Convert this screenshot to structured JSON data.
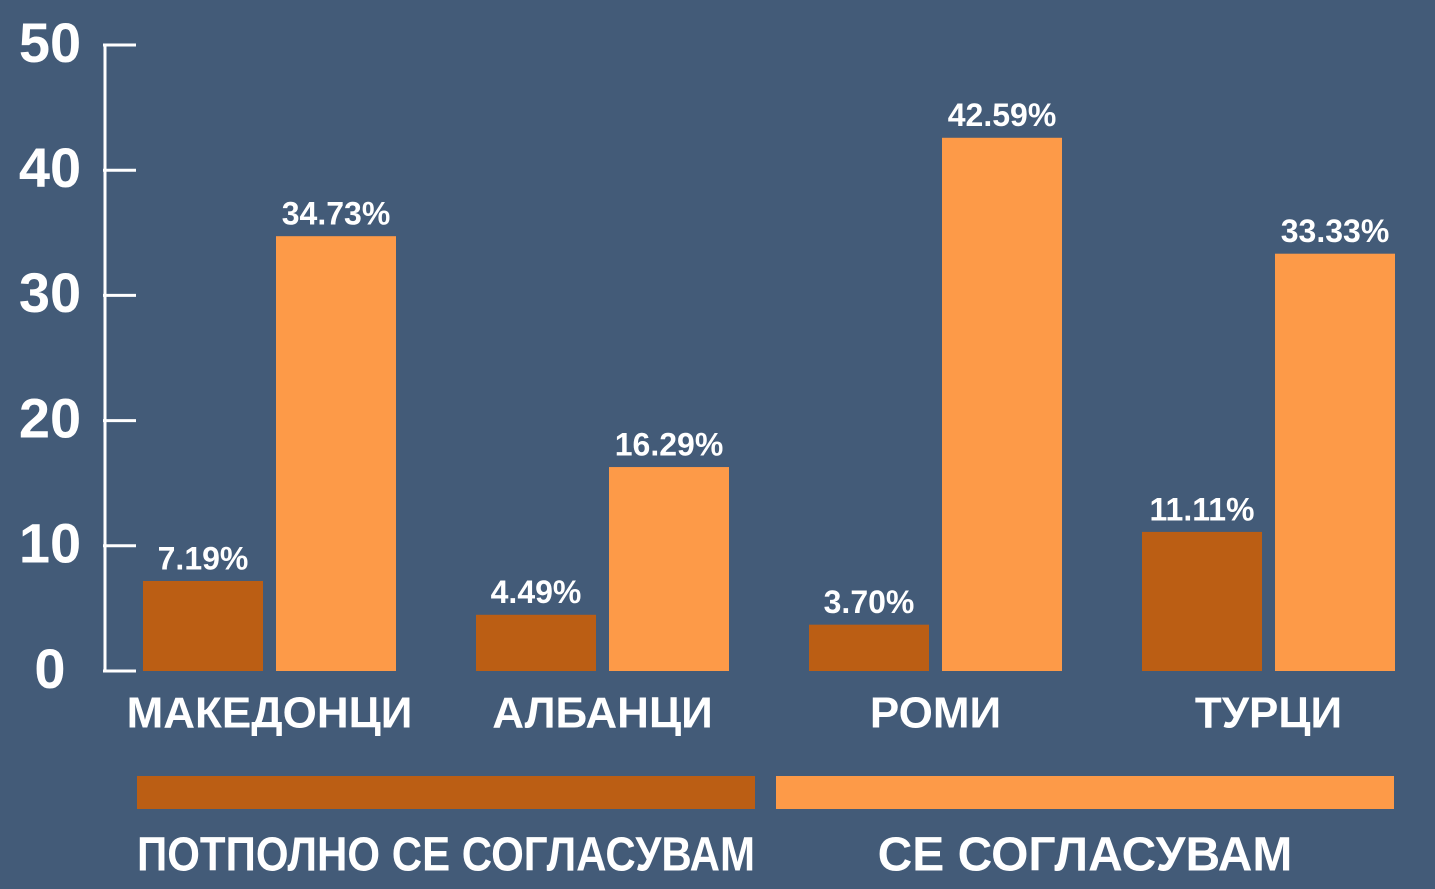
{
  "chart_data": {
    "type": "bar",
    "categories": [
      "МАКЕДОНЦИ",
      "АЛБАНЦИ",
      "РОМИ",
      "ТУРЦИ"
    ],
    "series": [
      {
        "name": "ПОТПОЛНО СЕ СОГЛАСУВАМ",
        "color": "#bb5e14",
        "values": [
          7.19,
          4.49,
          3.7,
          11.11
        ],
        "value_labels": [
          "7.19%",
          "4.49%",
          "3.70%",
          "11.11%"
        ]
      },
      {
        "name": "СЕ СОГЛАСУВАМ",
        "color": "#fd9a48",
        "values": [
          34.73,
          16.29,
          42.59,
          33.33
        ],
        "value_labels": [
          "34.73%",
          "16.29%",
          "42.59%",
          "33.33%"
        ]
      }
    ],
    "ylim": [
      0,
      50
    ],
    "yticks": [
      0,
      10,
      20,
      30,
      40,
      50
    ],
    "legend": "bottom"
  }
}
